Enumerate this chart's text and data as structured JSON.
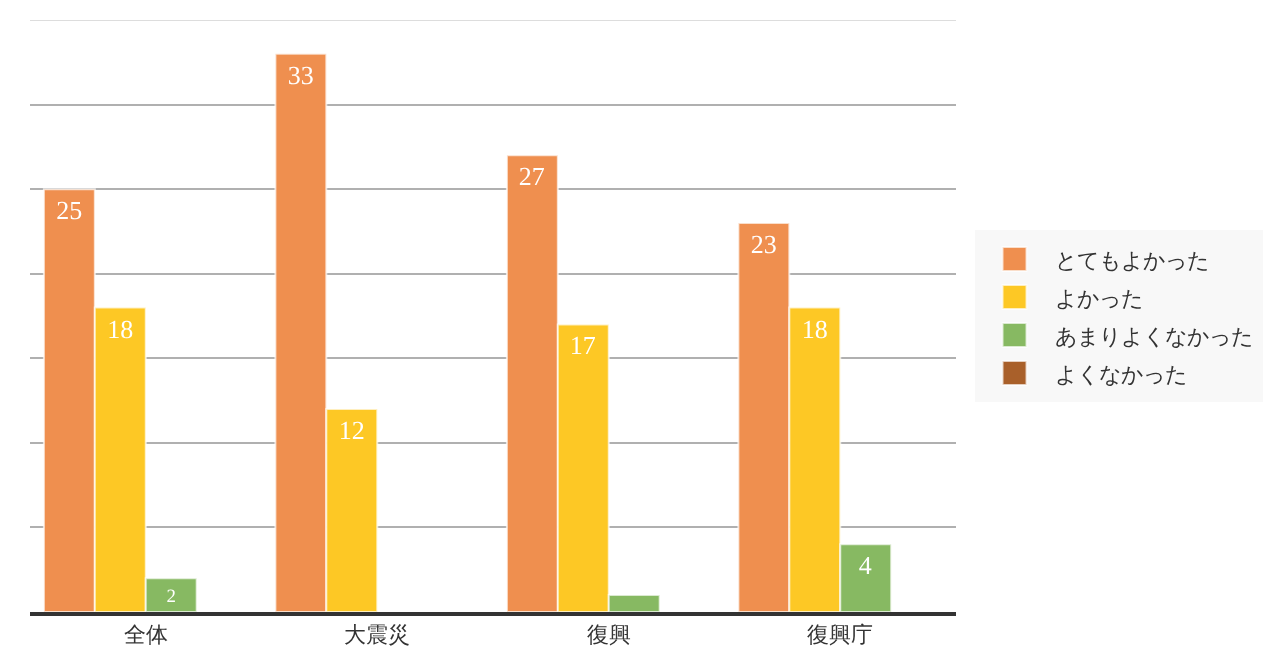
{
  "chart_data": {
    "type": "bar",
    "categories": [
      "全体",
      "大震災",
      "復興",
      "復興庁"
    ],
    "series": [
      {
        "name": "とてもよかった",
        "color": "#ef8f4f",
        "values": [
          25,
          33,
          27,
          23
        ],
        "value_labels": [
          "25",
          "33",
          "27",
          "23"
        ]
      },
      {
        "name": "よかった",
        "color": "#fdc825",
        "values": [
          18,
          12,
          17,
          18
        ],
        "value_labels": [
          "18",
          "12",
          "17",
          "18"
        ]
      },
      {
        "name": "あまりよくなかった",
        "color": "#87b962",
        "values": [
          2,
          null,
          1,
          4
        ],
        "value_labels": [
          "2",
          null,
          null,
          "4"
        ]
      },
      {
        "name": "よくなかった",
        "color": "#a9602a",
        "values": [
          null,
          null,
          null,
          null
        ],
        "value_labels": [
          null,
          null,
          null,
          null
        ]
      }
    ],
    "ylim": [
      0,
      35
    ],
    "yticks": [
      {
        "value": 0,
        "label": null
      },
      {
        "value": 5,
        "label": null
      },
      {
        "value": 10,
        "label": null
      },
      {
        "value": 15,
        "label": null
      },
      {
        "value": 20,
        "label": null
      },
      {
        "value": 25,
        "label": null
      },
      {
        "value": 30,
        "label": null
      }
    ],
    "grid": "y",
    "legend": "right",
    "tick_labels": "x"
  }
}
